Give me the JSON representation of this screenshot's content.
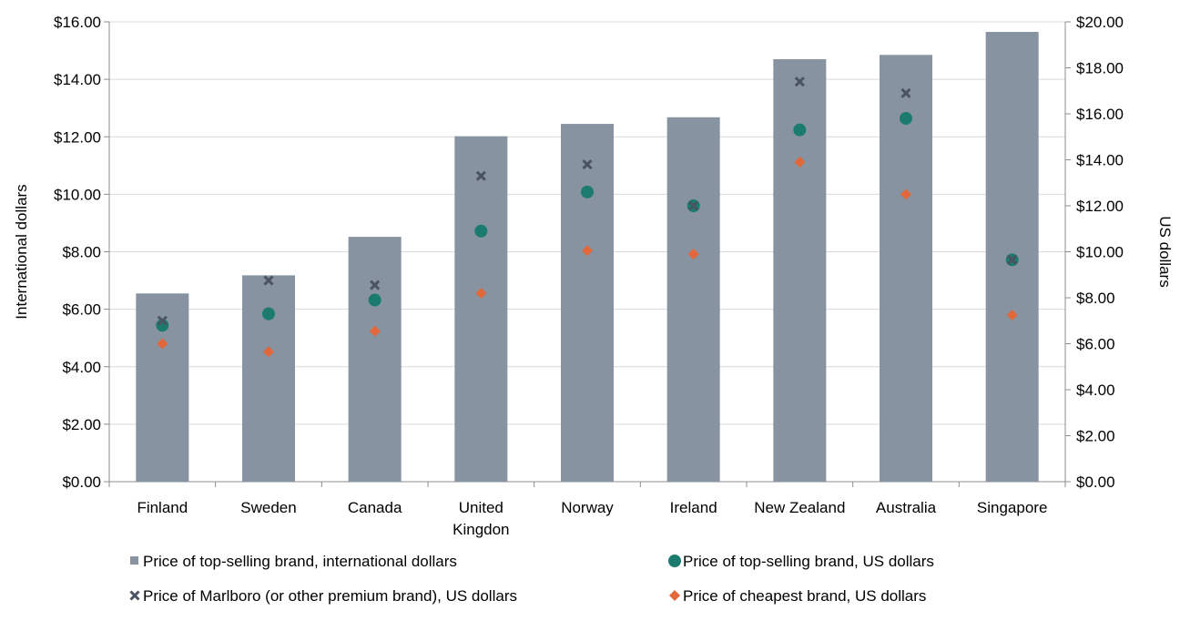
{
  "chart_data": {
    "type": "bar",
    "categories": [
      "Finland",
      "Sweden",
      "Canada",
      "United Kingdon",
      "Norway",
      "Ireland",
      "New Zealand",
      "Australia",
      "Singapore"
    ],
    "category_lines": [
      [
        "Finland"
      ],
      [
        "Sweden"
      ],
      [
        "Canada"
      ],
      [
        "United",
        "Kingdon"
      ],
      [
        "Norway"
      ],
      [
        "Ireland"
      ],
      [
        "New Zealand"
      ],
      [
        "Australia"
      ],
      [
        "Singapore"
      ]
    ],
    "left_axis": {
      "label": "International dollars",
      "ylim": [
        0,
        16
      ],
      "ticks": [
        "$0.00",
        "$2.00",
        "$4.00",
        "$6.00",
        "$8.00",
        "$10.00",
        "$12.00",
        "$14.00",
        "$16.00"
      ]
    },
    "right_axis": {
      "label": "US dollars",
      "ylim": [
        0,
        20
      ],
      "ticks": [
        "$0.00",
        "$2.00",
        "$4.00",
        "$6.00",
        "$8.00",
        "$10.00",
        "$12.00",
        "$14.00",
        "$16.00",
        "$18.00",
        "$20.00"
      ]
    },
    "series": [
      {
        "name": "Price of top-selling brand, international dollars",
        "kind": "bar",
        "axis": "left",
        "color": "#8793a1",
        "values": [
          6.55,
          7.18,
          8.52,
          12.02,
          12.45,
          12.68,
          14.7,
          14.85,
          15.65
        ]
      },
      {
        "name": "Price of top-selling brand, US dollars",
        "kind": "circle",
        "axis": "right",
        "color": "#1b7b6e",
        "values": [
          6.8,
          7.3,
          7.9,
          10.9,
          12.6,
          12.0,
          15.3,
          15.8,
          9.65
        ]
      },
      {
        "name": "Price of Marlboro (or other premium brand), US dollars",
        "kind": "x",
        "axis": "right",
        "color": "#4a5361",
        "values": [
          7.0,
          8.75,
          8.55,
          13.3,
          13.8,
          12.0,
          17.4,
          16.9,
          9.65
        ]
      },
      {
        "name": "Price of cheapest brand, US dollars",
        "kind": "diamond",
        "axis": "right",
        "color": "#e2683c",
        "values": [
          6.0,
          5.65,
          6.55,
          8.2,
          10.05,
          9.9,
          13.9,
          12.5,
          7.25
        ]
      }
    ],
    "legend_position": "bottom"
  }
}
